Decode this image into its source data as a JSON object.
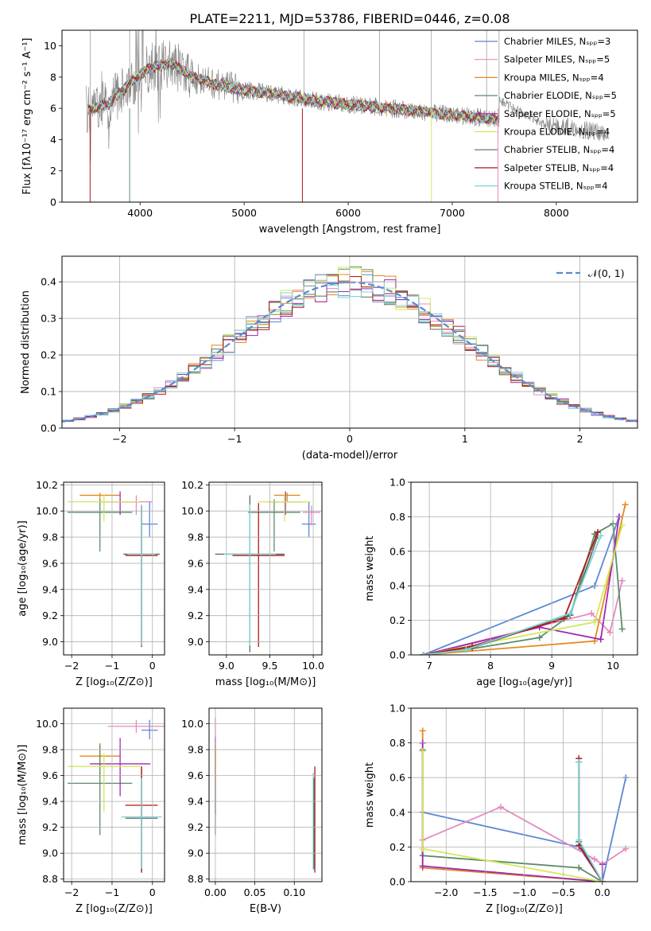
{
  "figure": {
    "title": "PLATE=2211, MJD=53786, FIBERID=0446, z=0.08"
  },
  "chart_data": [
    {
      "id": "spectrum",
      "type": "line",
      "xlabel": "wavelength [Angstrom, rest frame]",
      "ylabel": "Flux [fλ10⁻¹⁷ erg cm⁻² s⁻¹ A⁻¹]",
      "xlim": [
        3250,
        8780
      ],
      "ylim": [
        0,
        11
      ],
      "xticks": [
        4000,
        5000,
        6000,
        7000,
        8000
      ],
      "yticks": [
        0,
        2,
        4,
        6,
        8,
        10
      ],
      "legend_position": "top-right",
      "data_color": "#808080",
      "series": [
        {
          "name": "Chabrier MILES, Nₛₚₚ=3",
          "color": "#5b88d6"
        },
        {
          "name": "Salpeter MILES, Nₛₚₚ=5",
          "color": "#e68ac0"
        },
        {
          "name": "Kroupa MILES, Nₛₚₚ=4",
          "color": "#e6891e"
        },
        {
          "name": "Chabrier ELODIE, Nₛₚₚ=5",
          "color": "#5a8c6a"
        },
        {
          "name": "Salpeter ELODIE, Nₛₚₚ=5",
          "color": "#9b2bb5"
        },
        {
          "name": "Kroupa ELODIE, Nₛₚₚ=4",
          "color": "#d4e85a"
        },
        {
          "name": "Chabrier STELIB, Nₛₚₚ=4",
          "color": "#5e6b5e"
        },
        {
          "name": "Salpeter STELIB, Nₛₚₚ=4",
          "color": "#b01818"
        },
        {
          "name": "Kroupa STELIB, Nₛₚₚ=4",
          "color": "#7ad6d6"
        }
      ],
      "continuum": {
        "x": [
          3500,
          3700,
          3900,
          4100,
          4300,
          4500,
          4700,
          4900,
          5200,
          5500,
          5800,
          6100,
          6400,
          6700,
          7000,
          7400,
          7700,
          8000,
          8300,
          8500
        ],
        "y": [
          5.9,
          6.3,
          7.6,
          8.6,
          8.9,
          8.0,
          7.6,
          7.3,
          7.0,
          6.7,
          6.4,
          6.2,
          6.0,
          5.8,
          5.6,
          5.3,
          5.1,
          4.9,
          4.6,
          4.4
        ]
      },
      "model_end": 7450,
      "sky_spikes": [
        3520,
        3900,
        4030,
        5577,
        6300,
        6800,
        7330,
        7450
      ]
    },
    {
      "id": "residuals",
      "type": "line",
      "xlabel": "(data-model)/error",
      "ylabel": "Normed distribution",
      "xlim": [
        -2.5,
        2.5
      ],
      "ylim": [
        0,
        0.47
      ],
      "xticks": [
        -2,
        -1,
        0,
        1,
        2
      ],
      "yticks": [
        0.0,
        0.1,
        0.2,
        0.3,
        0.4
      ],
      "legend": "𝒩(0, 1)",
      "legend_position": "top-right",
      "gauss_color": "#5b88d6",
      "bin_width": 0.1
    },
    {
      "id": "age-vs-Z",
      "type": "scatter",
      "xlabel": "Z [log₁₀(Z/Z⊙)]",
      "ylabel": "age  [log₁₀(age/yr)]",
      "xlim": [
        -2.2,
        0.3
      ],
      "ylim": [
        8.9,
        10.22
      ],
      "xticks": [
        -2,
        -1,
        0
      ],
      "yticks": [
        9.0,
        9.2,
        9.4,
        9.6,
        9.8,
        10.0,
        10.2
      ],
      "points": [
        {
          "x": -0.07,
          "y": 9.9,
          "xerr": 0.2,
          "yerr_lo": 0.1,
          "yerr_hi": 0.17,
          "c": 0
        },
        {
          "x": -0.4,
          "y": 10.07,
          "xerr": 0.4,
          "yerr_lo": 0.1,
          "yerr_hi": 0.05,
          "c": 1
        },
        {
          "x": -1.3,
          "y": 10.12,
          "xerr": 0.5,
          "yerr_lo": 0.05,
          "yerr_hi": 0.02,
          "c": 2
        },
        {
          "x": -1.3,
          "y": 9.99,
          "xerr": 0.8,
          "yerr_lo": 0.3,
          "yerr_hi": 0.1,
          "c": 3
        },
        {
          "x": -0.8,
          "y": 10.07,
          "xerr": 0.5,
          "yerr_lo": 0.1,
          "yerr_hi": 0.08,
          "c": 4
        },
        {
          "x": -1.2,
          "y": 10.07,
          "xerr": 0.9,
          "yerr_lo": 0.15,
          "yerr_hi": 0.06,
          "c": 5
        },
        {
          "x": -0.27,
          "y": 9.67,
          "xerr": 0.45,
          "yerr_lo": 0.7,
          "yerr_hi": 0.37,
          "c": 6
        },
        {
          "x": -0.27,
          "y": 9.66,
          "xerr": 0.4,
          "yerr_lo": 0.7,
          "yerr_hi": 0.38,
          "c": 7
        },
        {
          "x": -0.27,
          "y": 9.67,
          "xerr": 0.35,
          "yerr_lo": 0.7,
          "yerr_hi": 0.38,
          "c": 8
        }
      ]
    },
    {
      "id": "age-vs-mass",
      "type": "scatter",
      "xlabel": "mass [log₁₀(M/M⊙)]",
      "ylabel": "",
      "xlim": [
        8.8,
        10.1
      ],
      "ylim": [
        8.9,
        10.22
      ],
      "xticks": [
        9.0,
        9.5,
        10.0
      ],
      "yticks": [
        9.0,
        9.2,
        9.4,
        9.6,
        9.8,
        10.0,
        10.2
      ],
      "points": [
        {
          "x": 9.95,
          "y": 9.9,
          "xerr": 0.08,
          "yerr_lo": 0.1,
          "yerr_hi": 0.17,
          "c": 0
        },
        {
          "x": 9.98,
          "y": 9.99,
          "xerr": 0.1,
          "yerr_lo": 0.1,
          "yerr_hi": 0.05,
          "c": 1
        },
        {
          "x": 9.7,
          "y": 10.12,
          "xerr": 0.15,
          "yerr_lo": 0.05,
          "yerr_hi": 0.02,
          "c": 2
        },
        {
          "x": 9.55,
          "y": 9.99,
          "xerr": 0.3,
          "yerr_lo": 0.3,
          "yerr_hi": 0.1,
          "c": 3
        },
        {
          "x": 9.68,
          "y": 10.07,
          "xerr": 0.2,
          "yerr_lo": 0.1,
          "yerr_hi": 0.08,
          "c": 4
        },
        {
          "x": 9.67,
          "y": 10.07,
          "xerr": 0.3,
          "yerr_lo": 0.15,
          "yerr_hi": 0.06,
          "c": 5
        },
        {
          "x": 9.27,
          "y": 9.67,
          "xerr": 0.4,
          "yerr_lo": 0.75,
          "yerr_hi": 0.45,
          "c": 6
        },
        {
          "x": 9.37,
          "y": 9.66,
          "xerr": 0.3,
          "yerr_lo": 0.7,
          "yerr_hi": 0.4,
          "c": 7
        },
        {
          "x": 9.27,
          "y": 9.67,
          "xerr": 0.3,
          "yerr_lo": 0.7,
          "yerr_hi": 0.38,
          "c": 8
        }
      ]
    },
    {
      "id": "weight-vs-age",
      "type": "line",
      "xlabel": "age  [log₁₀(age/yr)]",
      "ylabel": "mass weight",
      "xlim": [
        6.7,
        10.4
      ],
      "ylim": [
        0,
        1
      ],
      "xticks": [
        7,
        8,
        9,
        10
      ],
      "yticks": [
        0.0,
        0.2,
        0.4,
        0.6,
        0.8,
        1.0
      ],
      "series": [
        {
          "c": 0,
          "x": [
            6.9,
            9.7,
            10.1
          ],
          "y": [
            0.0,
            0.4,
            0.8
          ]
        },
        {
          "c": 1,
          "x": [
            6.9,
            9.65,
            9.95,
            10.15
          ],
          "y": [
            0.0,
            0.24,
            0.13,
            0.43
          ]
        },
        {
          "c": 2,
          "x": [
            6.9,
            9.7,
            10.2
          ],
          "y": [
            0.0,
            0.08,
            0.87
          ]
        },
        {
          "c": 3,
          "x": [
            6.9,
            7.6,
            8.8,
            9.3,
            9.7,
            10.0,
            10.15
          ],
          "y": [
            0.0,
            0.03,
            0.1,
            0.23,
            0.7,
            0.76,
            0.15
          ]
        },
        {
          "c": 4,
          "x": [
            6.9,
            8.8,
            9.8,
            10.1
          ],
          "y": [
            0.0,
            0.16,
            0.09,
            0.8
          ]
        },
        {
          "c": 5,
          "x": [
            6.9,
            9.7,
            10.15
          ],
          "y": [
            0.0,
            0.19,
            0.75
          ]
        },
        {
          "c": 6,
          "x": [
            6.9,
            7.7,
            9.3,
            9.75
          ],
          "y": [
            0.0,
            0.04,
            0.23,
            0.69
          ]
        },
        {
          "c": 7,
          "x": [
            6.9,
            7.7,
            9.2,
            9.75
          ],
          "y": [
            0.0,
            0.05,
            0.21,
            0.71
          ]
        },
        {
          "c": 8,
          "x": [
            6.9,
            7.6,
            9.3,
            9.8
          ],
          "y": [
            0.0,
            0.03,
            0.24,
            0.69
          ]
        }
      ]
    },
    {
      "id": "mass-vs-Z",
      "type": "scatter",
      "xlabel": "Z [log₁₀(Z/Z⊙)]",
      "ylabel": "mass [log₁₀(M/M⊙)]",
      "xlim": [
        -2.2,
        0.3
      ],
      "ylim": [
        8.78,
        10.12
      ],
      "xticks": [
        -2,
        -1,
        0
      ],
      "yticks": [
        8.8,
        9.0,
        9.2,
        9.4,
        9.6,
        9.8,
        10.0
      ],
      "points": [
        {
          "x": -0.07,
          "y": 9.95,
          "xerr": 0.2,
          "yerr_lo": 0.07,
          "yerr_hi": 0.08,
          "c": 0
        },
        {
          "x": -0.4,
          "y": 9.98,
          "xerr": 0.7,
          "yerr_lo": 0.05,
          "yerr_hi": 0.05,
          "c": 1
        },
        {
          "x": -1.3,
          "y": 9.75,
          "xerr": 0.5,
          "yerr_lo": 0.15,
          "yerr_hi": 0.1,
          "c": 2
        },
        {
          "x": -1.3,
          "y": 9.54,
          "xerr": 0.8,
          "yerr_lo": 0.4,
          "yerr_hi": 0.3,
          "c": 3
        },
        {
          "x": -0.8,
          "y": 9.69,
          "xerr": 0.75,
          "yerr_lo": 0.25,
          "yerr_hi": 0.2,
          "c": 4
        },
        {
          "x": -1.2,
          "y": 9.67,
          "xerr": 0.9,
          "yerr_lo": 0.35,
          "yerr_hi": 0.1,
          "c": 5
        },
        {
          "x": -0.27,
          "y": 9.27,
          "xerr": 0.4,
          "yerr_lo": 0.42,
          "yerr_hi": 0.4,
          "c": 6
        },
        {
          "x": -0.27,
          "y": 9.37,
          "xerr": 0.4,
          "yerr_lo": 0.52,
          "yerr_hi": 0.3,
          "c": 7
        },
        {
          "x": -0.27,
          "y": 9.28,
          "xerr": 0.5,
          "yerr_lo": 0.4,
          "yerr_hi": 0.3,
          "c": 8
        }
      ]
    },
    {
      "id": "mass-vs-ebv",
      "type": "scatter",
      "xlabel": "E(B-V)",
      "ylabel": "",
      "xlim": [
        -0.008,
        0.135
      ],
      "ylim": [
        8.78,
        10.12
      ],
      "xticks": [
        0.0,
        0.05,
        0.1
      ],
      "xtick_labels": [
        "0.00",
        "0.05",
        "0.10"
      ],
      "yticks": [
        8.8,
        9.0,
        9.2,
        9.4,
        9.6,
        9.8,
        10.0
      ],
      "points": [
        {
          "x": 0.0,
          "y": 9.95,
          "yerr_lo": 0.1,
          "yerr_hi": 0.1,
          "c": 1
        },
        {
          "x": 0.0,
          "y": 9.7,
          "yerr_lo": 0.4,
          "yerr_hi": 0.2,
          "c": 4
        },
        {
          "x": 0.0,
          "y": 9.67,
          "yerr_lo": 0.35,
          "yerr_hi": 0.15,
          "c": 5
        },
        {
          "x": 0.0,
          "y": 9.54,
          "yerr_lo": 0.4,
          "yerr_hi": 0.3,
          "c": 3
        },
        {
          "x": 0.0,
          "y": 9.75,
          "yerr_lo": 0.2,
          "yerr_hi": 0.1,
          "c": 2
        },
        {
          "x": 0.126,
          "y": 9.37,
          "yerr_lo": 0.52,
          "yerr_hi": 0.3,
          "c": 7
        },
        {
          "x": 0.124,
          "y": 9.27,
          "yerr_lo": 0.4,
          "yerr_hi": 0.35,
          "c": 8
        },
        {
          "x": 0.125,
          "y": 9.28,
          "yerr_lo": 0.4,
          "yerr_hi": 0.3,
          "c": 6
        }
      ]
    },
    {
      "id": "weight-vs-Z",
      "type": "line",
      "xlabel": "Z [log₁₀(Z/Z⊙)]",
      "ylabel": "mass weight",
      "xlim": [
        -2.45,
        0.45
      ],
      "ylim": [
        0,
        1
      ],
      "xticks": [
        -2.0,
        -1.5,
        -1.0,
        -0.5,
        0.0
      ],
      "xtick_labels": [
        "−2.0",
        "−1.5",
        "−1.0",
        "−0.5",
        "0.0"
      ],
      "yticks": [
        0.0,
        0.2,
        0.4,
        0.6,
        0.8,
        1.0
      ],
      "series": [
        {
          "c": 0,
          "x": [
            -2.3,
            -0.3,
            0.0,
            0.3
          ],
          "y": [
            0.4,
            0.2,
            0.0,
            0.6
          ]
        },
        {
          "c": 1,
          "x": [
            -2.3,
            -1.3,
            -0.1,
            0.0,
            0.3
          ],
          "y": [
            0.24,
            0.43,
            0.13,
            0.1,
            0.19
          ]
        },
        {
          "c": 2,
          "x": [
            -2.3,
            -2.3,
            0.0
          ],
          "y": [
            0.87,
            0.08,
            0.0
          ]
        },
        {
          "c": 3,
          "x": [
            -2.3,
            -2.3,
            -0.3,
            0.0
          ],
          "y": [
            0.76,
            0.15,
            0.08,
            0.0
          ]
        },
        {
          "c": 4,
          "x": [
            -2.3,
            -2.3,
            0.0,
            0.0
          ],
          "y": [
            0.8,
            0.09,
            0.0,
            0.1
          ]
        },
        {
          "c": 5,
          "x": [
            -2.3,
            -2.3,
            0.0
          ],
          "y": [
            0.75,
            0.19,
            0.0
          ]
        },
        {
          "c": 6,
          "x": [
            -0.3,
            -0.3,
            0.0
          ],
          "y": [
            0.69,
            0.23,
            0.0
          ]
        },
        {
          "c": 7,
          "x": [
            -0.3,
            -0.3,
            0.0
          ],
          "y": [
            0.71,
            0.21,
            0.0
          ]
        },
        {
          "c": 8,
          "x": [
            -0.3,
            -0.3,
            0.0
          ],
          "y": [
            0.69,
            0.24,
            0.0
          ]
        }
      ]
    }
  ]
}
